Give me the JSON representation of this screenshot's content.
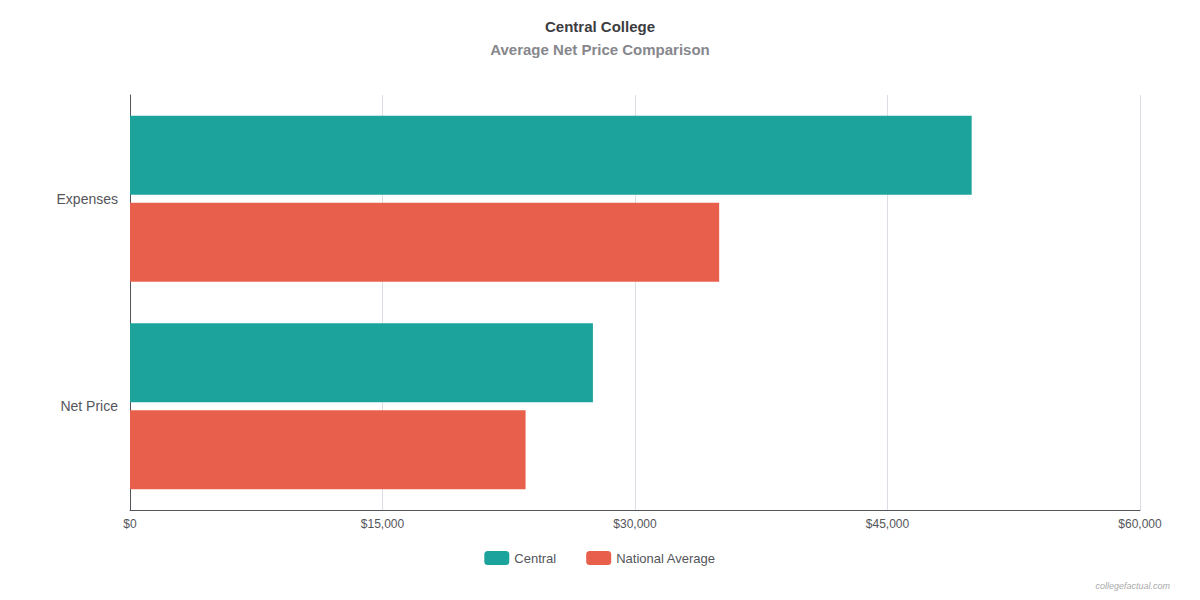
{
  "chart_data": {
    "type": "bar",
    "orientation": "horizontal",
    "title": "Central College",
    "subtitle": "Average Net Price Comparison",
    "categories": [
      "Net Price",
      "Expenses"
    ],
    "series": [
      {
        "name": "Central",
        "color": "#1ba39c",
        "values": [
          27500,
          50000
        ]
      },
      {
        "name": "National Average",
        "color": "#e8604c",
        "values": [
          23500,
          35000
        ]
      }
    ],
    "xlim": [
      0,
      60000
    ],
    "xticks": [
      {
        "value": 0,
        "label": "$0"
      },
      {
        "value": 15000,
        "label": "$15,000"
      },
      {
        "value": 30000,
        "label": "$30,000"
      },
      {
        "value": 45000,
        "label": "$45,000"
      },
      {
        "value": 60000,
        "label": "$60,000"
      }
    ],
    "grid": true,
    "legend": "lower center",
    "annotations": [
      "collegefactual.com"
    ]
  }
}
